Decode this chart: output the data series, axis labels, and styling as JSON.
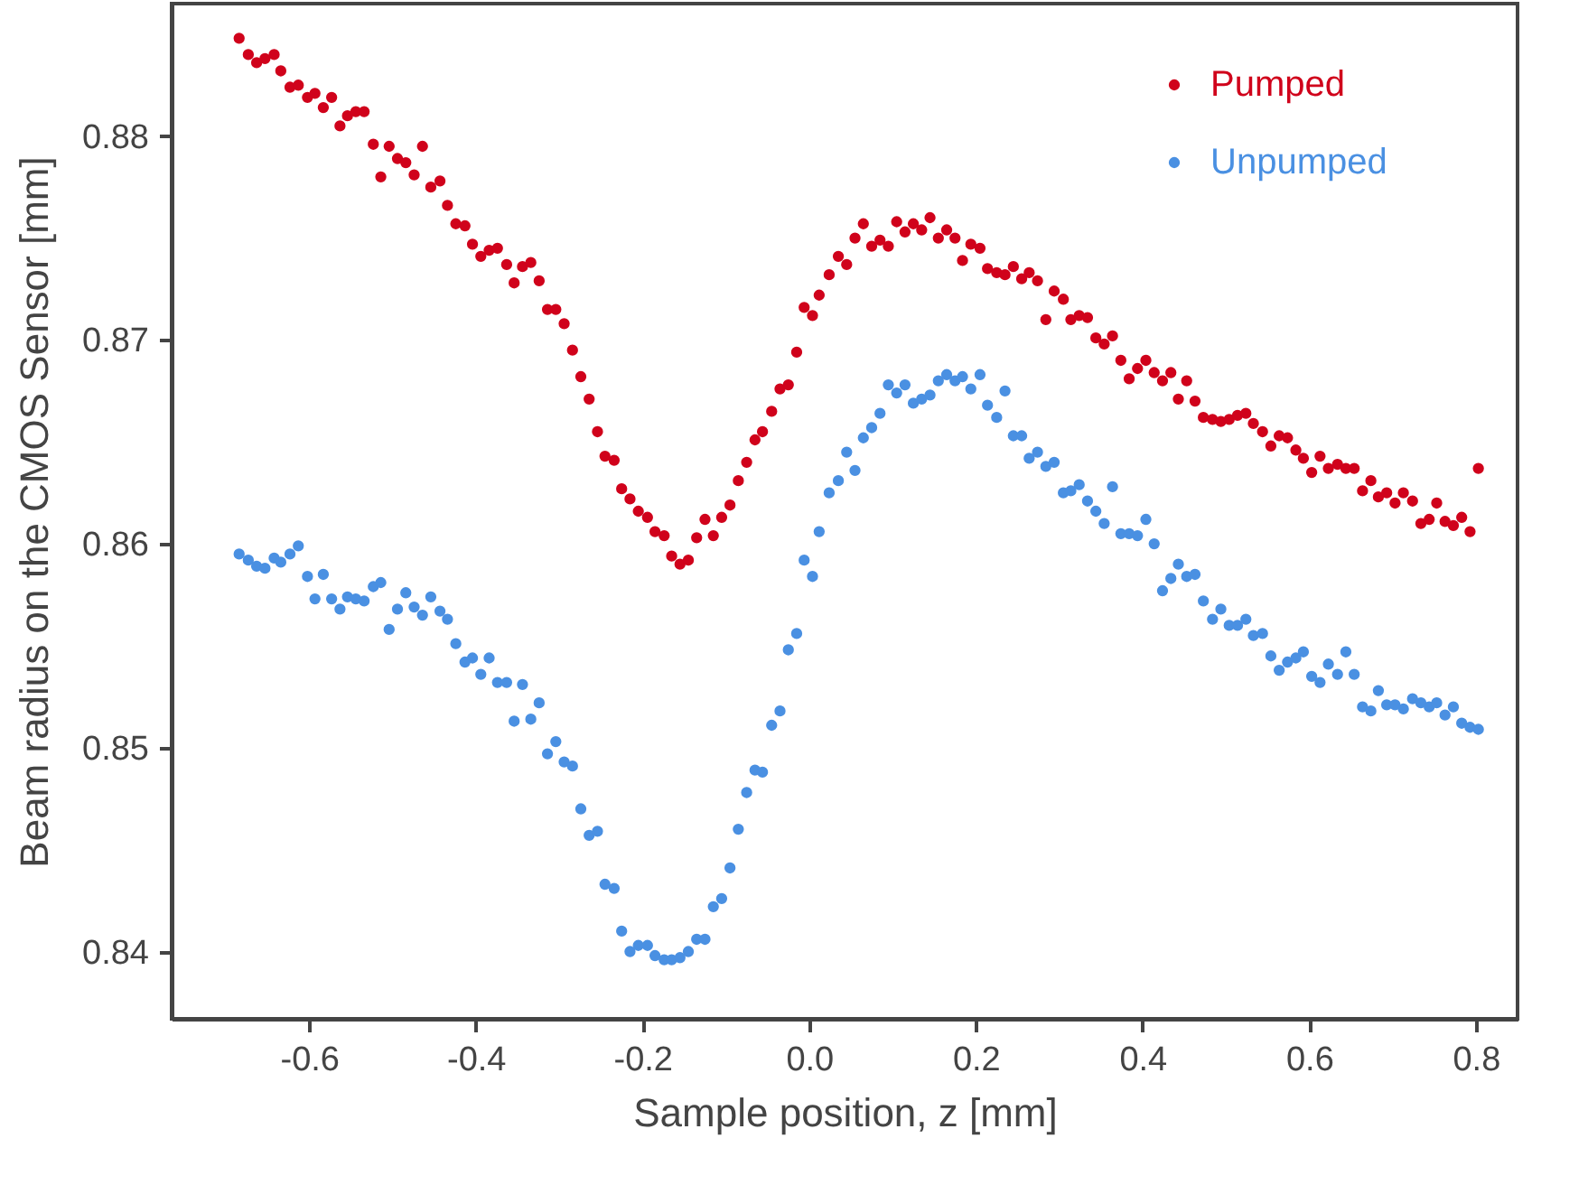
{
  "chart_data": {
    "type": "scatter",
    "xlabel": "Sample position, z [mm]",
    "ylabel": "Beam radius on the CMOS Sensor [mm]",
    "xlim": [
      -0.765,
      0.85
    ],
    "ylim": [
      0.8367,
      0.8865
    ],
    "xticks": [
      -0.6,
      -0.4,
      -0.2,
      {
        "value": 0,
        "label": "0.0"
      },
      0.2,
      0.4,
      0.6,
      0.8
    ],
    "yticks": [
      0.84,
      0.85,
      0.86,
      0.87,
      0.88
    ],
    "grid": false,
    "legend": "top right",
    "marker": "circle",
    "x": [
      -0.684,
      -0.673,
      -0.663,
      -0.653,
      -0.642,
      -0.634,
      -0.623,
      -0.613,
      -0.602,
      -0.593,
      -0.583,
      -0.573,
      -0.563,
      -0.554,
      -0.544,
      -0.534,
      -0.523,
      -0.514,
      -0.504,
      -0.494,
      -0.484,
      -0.474,
      -0.464,
      -0.454,
      -0.443,
      -0.434,
      -0.424,
      -0.413,
      -0.404,
      -0.394,
      -0.384,
      -0.374,
      -0.363,
      -0.354,
      -0.344,
      -0.334,
      -0.324,
      -0.314,
      -0.304,
      -0.294,
      -0.284,
      -0.274,
      -0.264,
      -0.254,
      -0.245,
      -0.234,
      -0.225,
      -0.215,
      -0.205,
      -0.194,
      -0.185,
      -0.174,
      -0.165,
      -0.155,
      -0.145,
      -0.135,
      -0.125,
      -0.115,
      -0.105,
      -0.095,
      -0.085,
      -0.075,
      -0.065,
      -0.056,
      -0.045,
      -0.035,
      -0.025,
      -0.015,
      -0.006,
      0.004,
      0.012,
      0.024,
      0.035,
      0.045,
      0.055,
      0.065,
      0.075,
      0.085,
      0.095,
      0.105,
      0.115,
      0.125,
      0.135,
      0.145,
      0.155,
      0.165,
      0.175,
      0.184,
      0.194,
      0.205,
      0.214,
      0.225,
      0.235,
      0.245,
      0.255,
      0.264,
      0.274,
      0.284,
      0.294,
      0.305,
      0.314,
      0.324,
      0.334,
      0.344,
      0.354,
      0.364,
      0.374,
      0.384,
      0.394,
      0.404,
      0.414,
      0.424,
      0.434,
      0.443,
      0.453,
      0.463,
      0.473,
      0.484,
      0.494,
      0.504,
      0.514,
      0.524,
      0.533,
      0.544,
      0.554,
      0.564,
      0.574,
      0.584,
      0.593,
      0.603,
      0.613,
      0.623,
      0.634,
      0.644,
      0.654,
      0.664,
      0.674,
      0.683,
      0.693,
      0.703,
      0.713,
      0.724,
      0.734,
      0.744,
      0.753,
      0.763,
      0.773,
      0.783,
      0.793,
      0.803
    ],
    "series": [
      {
        "name": "Pumped",
        "color": "#d0021b",
        "values": [
          0.8848,
          0.884,
          0.8836,
          0.8838,
          0.884,
          0.8832,
          0.8824,
          0.8825,
          0.8819,
          0.8821,
          0.8814,
          0.8819,
          0.8805,
          0.881,
          0.8812,
          0.8812,
          0.8796,
          0.878,
          0.8795,
          0.8789,
          0.8787,
          0.8781,
          0.8795,
          0.8775,
          0.8778,
          0.8766,
          0.8757,
          0.8756,
          0.8747,
          0.8741,
          0.8744,
          0.8745,
          0.8737,
          0.8728,
          0.8736,
          0.8738,
          0.8729,
          0.8715,
          0.8715,
          0.8708,
          0.8695,
          0.8682,
          0.8671,
          0.8655,
          0.8643,
          0.8641,
          0.8627,
          0.8622,
          0.8616,
          0.8613,
          0.8606,
          0.8604,
          0.8594,
          0.859,
          0.8592,
          0.8603,
          0.8612,
          0.8604,
          0.8613,
          0.8619,
          0.8631,
          0.864,
          0.8651,
          0.8655,
          0.8665,
          0.8676,
          0.8678,
          0.8694,
          0.8716,
          0.8712,
          0.8722,
          0.8732,
          0.8741,
          0.8737,
          0.875,
          0.8757,
          0.8746,
          0.8749,
          0.8746,
          0.8758,
          0.8753,
          0.8757,
          0.8754,
          0.876,
          0.875,
          0.8754,
          0.875,
          0.8739,
          0.8747,
          0.8745,
          0.8735,
          0.8733,
          0.8732,
          0.8736,
          0.873,
          0.8733,
          0.8729,
          0.871,
          0.8724,
          0.872,
          0.871,
          0.8712,
          0.8711,
          0.8701,
          0.8698,
          0.8702,
          0.869,
          0.8681,
          0.8686,
          0.869,
          0.8684,
          0.868,
          0.8684,
          0.8671,
          0.868,
          0.867,
          0.8662,
          0.8661,
          0.866,
          0.8661,
          0.8663,
          0.8664,
          0.8659,
          0.8655,
          0.8648,
          0.8653,
          0.8652,
          0.8646,
          0.8642,
          0.8635,
          0.8643,
          0.8637,
          0.8639,
          0.8637,
          0.8637,
          0.8626,
          0.8631,
          0.8623,
          0.8625,
          0.862,
          0.8625,
          0.8621,
          0.861,
          0.8612,
          0.862,
          0.8611,
          0.8609,
          0.8613,
          0.8606,
          0.8637
        ]
      },
      {
        "name": "Unpumped",
        "color": "#4a90e2",
        "values": [
          0.8595,
          0.8592,
          0.8589,
          0.8588,
          0.8593,
          0.8591,
          0.8595,
          0.8599,
          0.8584,
          0.8573,
          0.8585,
          0.8573,
          0.8568,
          0.8574,
          0.8573,
          0.8572,
          0.8579,
          0.8581,
          0.8558,
          0.8568,
          0.8576,
          0.8569,
          0.8565,
          0.8574,
          0.8567,
          0.8563,
          0.8551,
          0.8542,
          0.8544,
          0.8536,
          0.8544,
          0.8532,
          0.8532,
          0.8513,
          0.8531,
          0.8514,
          0.8522,
          0.8497,
          0.8503,
          0.8493,
          0.8491,
          0.847,
          0.8457,
          0.8459,
          0.8433,
          0.8431,
          0.841,
          0.84,
          0.8403,
          0.8403,
          0.8398,
          0.8396,
          0.8396,
          0.8397,
          0.84,
          0.8406,
          0.8406,
          0.8422,
          0.8426,
          0.8441,
          0.846,
          0.8478,
          0.8489,
          0.8488,
          0.8511,
          0.8518,
          0.8548,
          0.8556,
          0.8592,
          0.8584,
          0.8606,
          0.8625,
          0.8631,
          0.8645,
          0.8636,
          0.8652,
          0.8657,
          0.8664,
          0.8678,
          0.8674,
          0.8678,
          0.8669,
          0.8671,
          0.8673,
          0.868,
          0.8683,
          0.868,
          0.8682,
          0.8676,
          0.8683,
          0.8668,
          0.8662,
          0.8675,
          0.8653,
          0.8653,
          0.8642,
          0.8645,
          0.8638,
          0.864,
          0.8625,
          0.8626,
          0.8629,
          0.8621,
          0.8616,
          0.861,
          0.8628,
          0.8605,
          0.8605,
          0.8604,
          0.8612,
          0.86,
          0.8577,
          0.8583,
          0.859,
          0.8584,
          0.8585,
          0.8572,
          0.8563,
          0.8568,
          0.856,
          0.856,
          0.8563,
          0.8555,
          0.8556,
          0.8545,
          0.8538,
          0.8542,
          0.8544,
          0.8547,
          0.8535,
          0.8532,
          0.8541,
          0.8536,
          0.8547,
          0.8536,
          0.852,
          0.8518,
          0.8528,
          0.8521,
          0.8521,
          0.8519,
          0.8524,
          0.8522,
          0.852,
          0.8522,
          0.8516,
          0.852,
          0.8512,
          0.851,
          0.8509
        ]
      }
    ]
  }
}
